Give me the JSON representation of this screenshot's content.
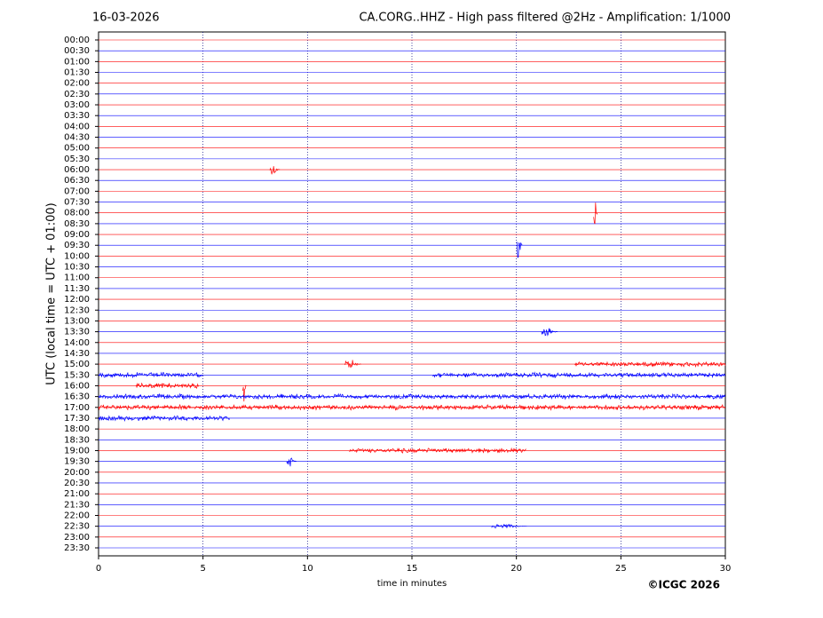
{
  "chart_data": {
    "type": "helicorder",
    "date": "16-03-2026",
    "title": "CA.CORG..HHZ - High pass filtered @2Hz - Amplification: 1/1000",
    "ylabel": "UTC (local time = UTC + 01:00)",
    "xlabel": "time in minutes",
    "copyright": "©ICGC 2026",
    "categories": [
      "00:00",
      "00:30",
      "01:00",
      "01:30",
      "02:00",
      "02:30",
      "03:00",
      "03:30",
      "04:00",
      "04:30",
      "05:00",
      "05:30",
      "06:00",
      "06:30",
      "07:00",
      "07:30",
      "08:00",
      "08:30",
      "09:00",
      "09:30",
      "10:00",
      "10:30",
      "11:00",
      "11:30",
      "12:00",
      "12:30",
      "13:00",
      "13:30",
      "14:00",
      "14:30",
      "15:00",
      "15:30",
      "16:00",
      "16:30",
      "17:00",
      "17:30",
      "18:00",
      "18:30",
      "19:00",
      "19:30",
      "20:00",
      "20:30",
      "21:00",
      "21:30",
      "22:00",
      "22:30",
      "23:00",
      "23:30"
    ],
    "trace_colors": [
      "#ff0000",
      "#0000ff"
    ],
    "xlim": [
      0,
      30
    ],
    "xticks": [
      0,
      5,
      10,
      15,
      20,
      25,
      30
    ],
    "grid": true,
    "events": [
      {
        "row": "06:00",
        "x": [
          8.2,
          8.7
        ]
      },
      {
        "row": "08:00",
        "x": [
          23.7,
          23.9
        ]
      },
      {
        "row": "09:30",
        "x": [
          20.0,
          20.3
        ]
      },
      {
        "row": "13:30",
        "x": [
          21.2,
          22.0
        ]
      },
      {
        "row": "15:00",
        "x": [
          11.8,
          12.6
        ]
      },
      {
        "row": "15:00",
        "x": [
          22.8,
          30
        ]
      },
      {
        "row": "15:30",
        "x": [
          0,
          5
        ]
      },
      {
        "row": "15:30",
        "x": [
          16,
          30
        ]
      },
      {
        "row": "16:00",
        "x": [
          1.8,
          4.8
        ]
      },
      {
        "row": "16:00",
        "x": [
          6.9,
          7.1
        ]
      },
      {
        "row": "16:30",
        "x": [
          0,
          30
        ]
      },
      {
        "row": "17:00",
        "x": [
          0,
          30
        ]
      },
      {
        "row": "17:30",
        "x": [
          0,
          6.3
        ]
      },
      {
        "row": "19:00",
        "x": [
          12,
          20.5
        ]
      },
      {
        "row": "19:30",
        "x": [
          9.0,
          9.5
        ]
      },
      {
        "row": "22:30",
        "x": [
          18.8,
          20.5
        ]
      }
    ]
  }
}
